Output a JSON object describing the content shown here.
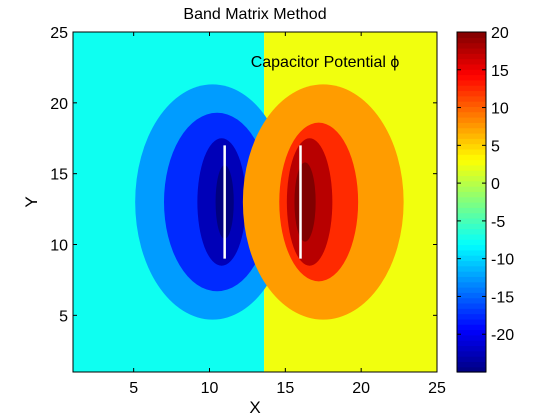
{
  "chart_data": {
    "type": "heatmap",
    "title": "Band Matrix Method",
    "xlabel": "X",
    "ylabel": "Y",
    "annotation": "Capacitor Potential ϕ",
    "xlim": [
      1,
      25
    ],
    "ylim": [
      1,
      25
    ],
    "xticks": [
      5,
      10,
      15,
      20,
      25
    ],
    "yticks": [
      5,
      10,
      15,
      20,
      25
    ],
    "colorbar": {
      "colormap": "jet",
      "clim": [
        -25,
        20
      ],
      "ticks": [
        20,
        15,
        10,
        5,
        0,
        -5,
        -10,
        -15,
        -20
      ]
    },
    "background_levels": {
      "left": -7.5,
      "right": 2.5
    },
    "contour_regions": [
      {
        "name": "negative-outer",
        "center_x": 10.2,
        "center_y": 13,
        "radius_x": 5.1,
        "radius_y": 8.3,
        "level": -12.5
      },
      {
        "name": "negative-middle",
        "center_x": 10.5,
        "center_y": 13,
        "radius_x": 3.5,
        "radius_y": 6.3,
        "level": -17.5
      },
      {
        "name": "negative-inner",
        "center_x": 10.8,
        "center_y": 13,
        "radius_x": 1.6,
        "radius_y": 4.5,
        "level": -22.5
      },
      {
        "name": "negative-core",
        "center_x": 11.0,
        "center_y": 13,
        "radius_x": 0.6,
        "radius_y": 2.6,
        "level": -25
      },
      {
        "name": "positive-outer",
        "center_x": 17.5,
        "center_y": 13,
        "radius_x": 5.3,
        "radius_y": 8.3,
        "level": 7.5
      },
      {
        "name": "positive-middle",
        "center_x": 17.2,
        "center_y": 13,
        "radius_x": 2.6,
        "radius_y": 5.6,
        "level": 12.5
      },
      {
        "name": "positive-inner",
        "center_x": 16.6,
        "center_y": 13,
        "radius_x": 1.5,
        "radius_y": 4.5,
        "level": 17.5
      },
      {
        "name": "positive-core",
        "center_x": 16.3,
        "center_y": 13,
        "radius_x": 0.7,
        "radius_y": 2.8,
        "level": 20
      }
    ],
    "plates": [
      {
        "name": "negative-plate",
        "x": 11,
        "y1": 9,
        "y2": 17
      },
      {
        "name": "positive-plate",
        "x": 16,
        "y1": 9,
        "y2": 17
      }
    ]
  }
}
